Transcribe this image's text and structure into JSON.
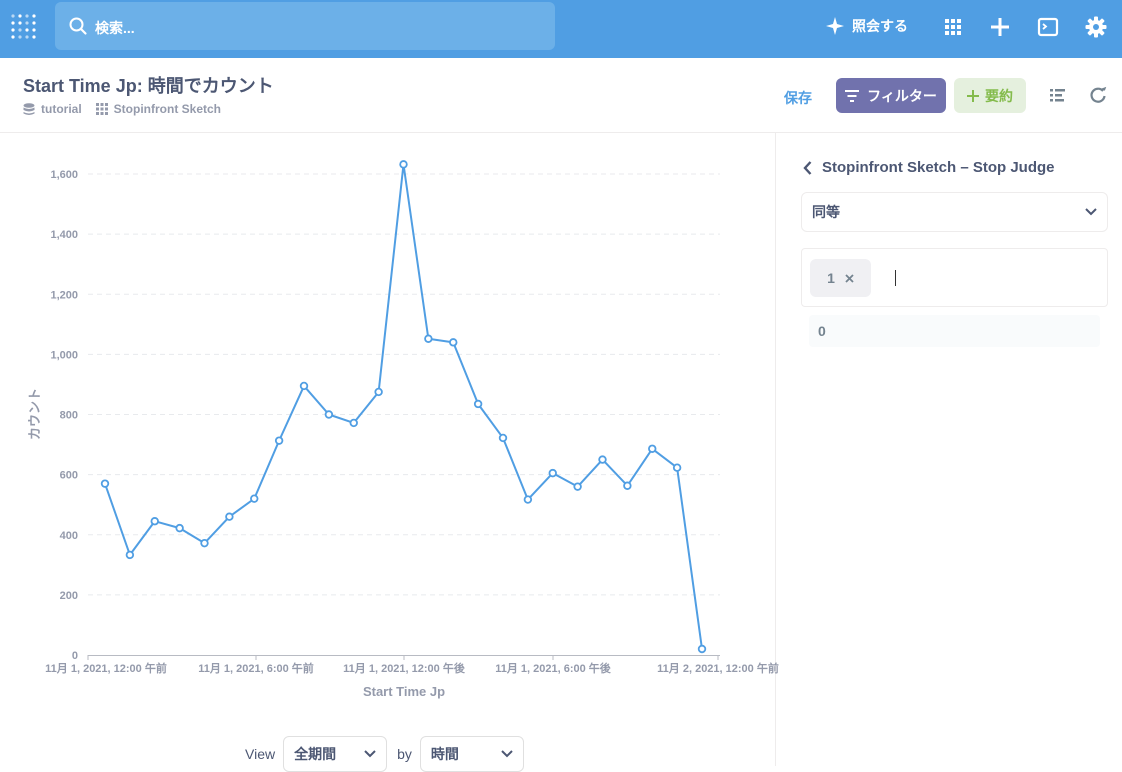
{
  "topbar": {
    "search_placeholder": "検索...",
    "ask_label": "照会する"
  },
  "header": {
    "title": "Start Time Jp: 時間でカウント",
    "breadcrumbs": [
      "tutorial",
      "Stopinfront Sketch"
    ],
    "save_label": "保存",
    "filter_label": "フィルター",
    "summarize_label": "要約"
  },
  "chart_data": {
    "type": "line",
    "xlabel": "Start Time Jp",
    "ylabel": "カウント",
    "ylim": [
      0,
      1600
    ],
    "y_ticks": [
      "0",
      "200",
      "400",
      "600",
      "800",
      "1,000",
      "1,200",
      "1,400",
      "1,600"
    ],
    "x_tick_labels": [
      "11月 1, 2021, 12:00 午前",
      "11月 1, 2021, 6:00 午前",
      "11月 1, 2021, 12:00 午後",
      "11月 1, 2021, 6:00 午後",
      "11月 2, 2021, 12:00 午前"
    ],
    "x_hours": [
      0,
      1,
      2,
      3,
      4,
      5,
      6,
      7,
      8,
      9,
      10,
      11,
      12,
      13,
      14,
      15,
      16,
      17,
      18,
      19,
      20,
      21,
      22,
      23,
      24
    ],
    "values": [
      570,
      333,
      445,
      422,
      372,
      460,
      520,
      713,
      895,
      800,
      772,
      875,
      1632,
      1052,
      1040,
      835,
      722,
      517,
      605,
      560,
      650,
      563,
      686,
      623,
      20
    ],
    "grid": true,
    "color": "#509ee3"
  },
  "viewbar": {
    "view_label": "View",
    "period_value": "全期間",
    "by_label": "by",
    "unit_value": "時間"
  },
  "sidebar": {
    "back_label": "Stopinfront Sketch – Stop Judge",
    "operator_value": "同等",
    "chip_value": "1",
    "suggestion": "0"
  }
}
